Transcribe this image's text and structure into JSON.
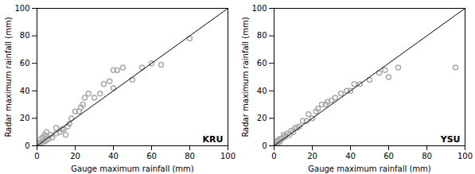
{
  "chart_data": [
    {
      "type": "scatter",
      "xlabel": "Gauge maximum rainfall (mm)",
      "ylabel": "Radar maximum rainfall (mm)",
      "annotation": "KRU",
      "series": [
        {
          "type": "scatter",
          "color": "#aaaaaa",
          "marker": "open circle",
          "x": [
            0,
            1,
            1,
            2,
            2,
            3,
            3,
            4,
            4,
            5,
            5,
            5,
            6,
            7,
            8,
            10,
            10,
            12,
            13,
            14,
            15,
            16,
            17,
            18,
            20,
            22,
            23,
            24,
            25,
            27,
            30,
            33,
            35,
            38,
            40,
            42,
            45,
            50,
            55,
            60,
            65,
            80,
            40
          ],
          "values": [
            0,
            1,
            2,
            2,
            5,
            3,
            6,
            3,
            8,
            4,
            7,
            10,
            5,
            8,
            6,
            9,
            13,
            10,
            12,
            12,
            8,
            14,
            16,
            20,
            25,
            25,
            28,
            30,
            35,
            38,
            35,
            38,
            45,
            47,
            42,
            55,
            57,
            48,
            57,
            60,
            59,
            78,
            55
          ]
        },
        {
          "type": "line",
          "color": "#000000",
          "line_style": "solid",
          "x": [
            0,
            100
          ],
          "values": [
            0,
            100
          ]
        }
      ],
      "xlim": [
        0,
        100
      ],
      "ylim": [
        0,
        100
      ],
      "xticks": [
        0,
        20,
        40,
        60,
        80,
        100
      ],
      "yticks": [
        0,
        20,
        40,
        60,
        80,
        100
      ],
      "grid": false
    },
    {
      "type": "scatter",
      "xlabel": "Gauge maximum rainfall (mm)",
      "ylabel": "Radar maximum rainfall (mm)",
      "annotation": "YSU",
      "series": [
        {
          "type": "scatter",
          "color": "#aaaaaa",
          "marker": "open circle",
          "x": [
            0,
            1,
            1,
            2,
            2,
            3,
            3,
            4,
            5,
            5,
            6,
            7,
            8,
            9,
            10,
            11,
            12,
            13,
            15,
            17,
            18,
            20,
            22,
            23,
            25,
            27,
            28,
            30,
            32,
            35,
            38,
            40,
            42,
            45,
            50,
            55,
            58,
            60,
            65,
            95
          ],
          "values": [
            0,
            1,
            3,
            2,
            4,
            3,
            5,
            5,
            6,
            8,
            7,
            9,
            8,
            11,
            10,
            13,
            13,
            14,
            18,
            18,
            23,
            20,
            25,
            27,
            30,
            30,
            32,
            33,
            35,
            38,
            40,
            40,
            45,
            45,
            48,
            53,
            55,
            50,
            57,
            57
          ]
        },
        {
          "type": "line",
          "color": "#000000",
          "line_style": "solid",
          "x": [
            0,
            100
          ],
          "values": [
            0,
            100
          ]
        }
      ],
      "xlim": [
        0,
        100
      ],
      "ylim": [
        0,
        100
      ],
      "xticks": [
        0,
        20,
        40,
        60,
        80,
        100
      ],
      "yticks": [
        0,
        20,
        40,
        60,
        80,
        100
      ],
      "grid": false
    }
  ]
}
